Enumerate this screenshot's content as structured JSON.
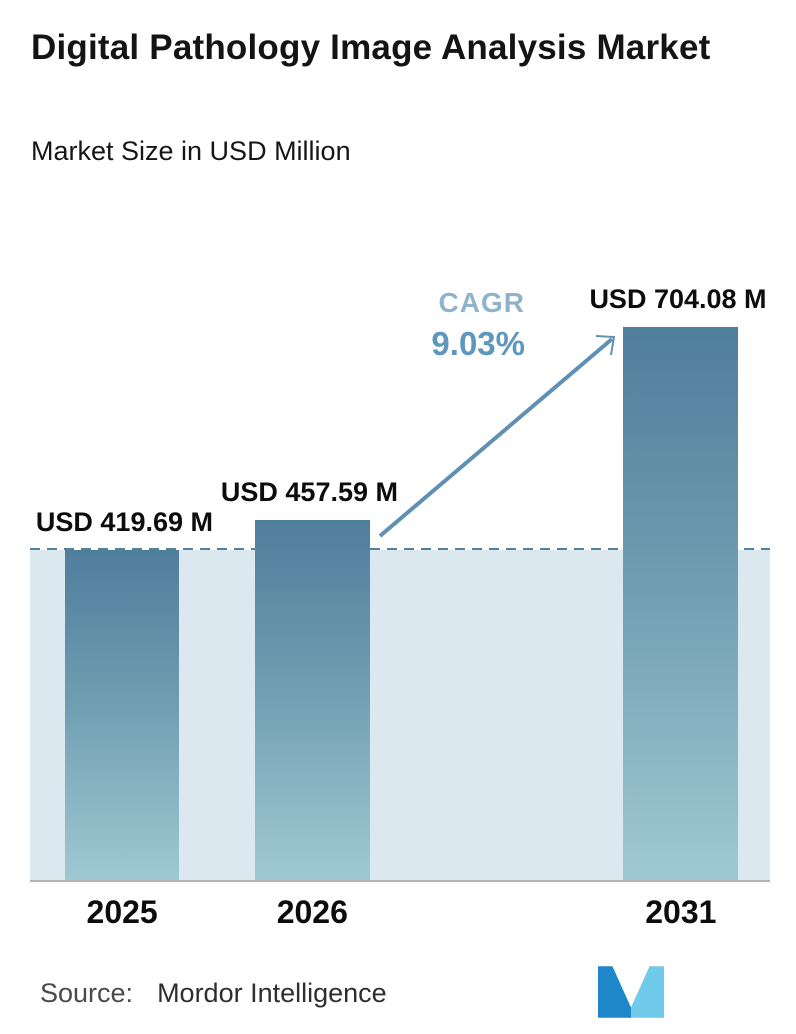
{
  "header": {
    "title": "Digital Pathology Image Analysis Market",
    "subtitle": "Market Size in USD Million"
  },
  "chart_data": {
    "type": "bar",
    "title": "Digital Pathology Image Analysis Market",
    "subtitle": "Market Size in USD Million",
    "categories": [
      "2025",
      "2026",
      "2031"
    ],
    "values": [
      419.69,
      457.59,
      704.08
    ],
    "value_labels": [
      "USD 419.69 M",
      "USD 457.59 M",
      "USD 704.08 M"
    ],
    "unit": "USD Million",
    "ylim": [
      0,
      710
    ],
    "grid": false,
    "legend": false,
    "reference_line_value": 419.69,
    "annotation": {
      "label": "CAGR",
      "value": "9.03%"
    },
    "colors": {
      "bar_top": "#4f7e9d",
      "bar_bottom": "#9fc9d2",
      "area_fill": "#dce8f0",
      "dashed_line": "#53809e",
      "arrow": "#6090b4",
      "cagr_label": "#8fb3cc",
      "cagr_value": "#5e96bc",
      "axis": "#b3b3b3"
    }
  },
  "footer": {
    "source_label": "Source:",
    "source_value": "Mordor Intelligence"
  }
}
